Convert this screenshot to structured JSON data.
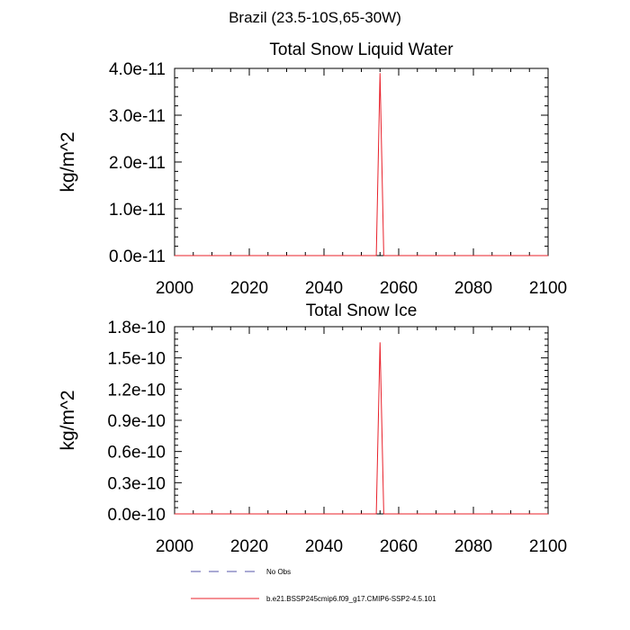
{
  "figure_title": "Brazil (23.5-10S,65-30W)",
  "chart_data": [
    {
      "type": "line",
      "title": "Total Snow Liquid Water",
      "xlabel": "",
      "ylabel": "kg/m^2",
      "xlim": [
        2000,
        2100
      ],
      "ylim": [
        0,
        4e-11
      ],
      "xticks": [
        2000,
        2020,
        2040,
        2060,
        2080,
        2100
      ],
      "xtick_labels": [
        "2000",
        "2020",
        "2040",
        "2060",
        "2080",
        "2100"
      ],
      "yticks": [
        0,
        1e-11,
        2e-11,
        3e-11,
        4e-11
      ],
      "ytick_labels": [
        "0.0e-11",
        "1.0e-11",
        "2.0e-11",
        "3.0e-11",
        "4.0e-11"
      ],
      "grid": false,
      "series": [
        {
          "name": "b.e21.BSSP245cmip6.f09_g17.CMIP6-SSP2-4.5.101",
          "color": "#e8202a",
          "x": [
            2000,
            2054,
            2055,
            2056,
            2100
          ],
          "y": [
            0,
            0,
            3.9e-11,
            0,
            0
          ]
        }
      ]
    },
    {
      "type": "line",
      "title": "Total Snow Ice",
      "xlabel": "",
      "ylabel": "kg/m^2",
      "xlim": [
        2000,
        2100
      ],
      "ylim": [
        0,
        1.8e-10
      ],
      "xticks": [
        2000,
        2020,
        2040,
        2060,
        2080,
        2100
      ],
      "xtick_labels": [
        "2000",
        "2020",
        "2040",
        "2060",
        "2080",
        "2100"
      ],
      "yticks": [
        0,
        3e-11,
        6e-11,
        9e-11,
        1.2e-10,
        1.5e-10,
        1.8e-10
      ],
      "ytick_labels": [
        "0.0e-10",
        "0.3e-10",
        "0.6e-10",
        "0.9e-10",
        "1.2e-10",
        "1.5e-10",
        "1.8e-10"
      ],
      "grid": false,
      "series": [
        {
          "name": "b.e21.BSSP245cmip6.f09_g17.CMIP6-SSP2-4.5.101",
          "color": "#e8202a",
          "x": [
            2000,
            2054,
            2055,
            2056,
            2100
          ],
          "y": [
            0,
            0,
            1.65e-10,
            0,
            0
          ]
        }
      ]
    }
  ],
  "legend": {
    "placement": "bottom",
    "items": [
      {
        "label": "No Obs",
        "color": "#5555aa",
        "style": "dashed"
      },
      {
        "label": "b.e21.BSSP245cmip6.f09_g17.CMIP6-SSP2-4.5.101",
        "color": "#e8202a",
        "style": "solid"
      }
    ]
  }
}
